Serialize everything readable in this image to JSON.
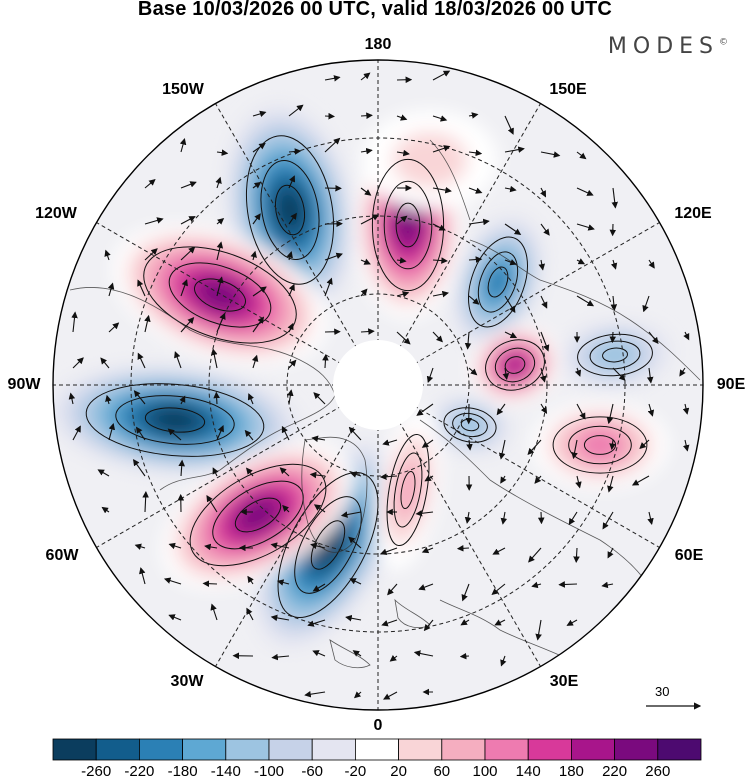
{
  "title": "Base 10/03/2026 00 UTC, valid 18/03/2026 00 UTC",
  "brand": "MODES",
  "brand_mark": "©",
  "longitude_labels": {
    "top": "180",
    "top_left": "150W",
    "top_right": "150E",
    "upper_left": "120W",
    "upper_right": "120E",
    "left": "90W",
    "right": "90E",
    "lower_left": "60W",
    "lower_right": "60E",
    "bottom_left": "30W",
    "bottom_right": "30E",
    "bottom": "0"
  },
  "reference_vector": {
    "label": "30"
  },
  "colorbar": {
    "colors": [
      "#0b3d5e",
      "#125d8c",
      "#2b80b5",
      "#5ea8d3",
      "#9dc4e1",
      "#c6d2e8",
      "#e4e5f1",
      "#ffffff",
      "#f9d5d7",
      "#f5aec0",
      "#ee7bb0",
      "#d8399a",
      "#a8158b",
      "#7a0a7e",
      "#4d0a70"
    ],
    "labels": [
      "-260",
      "-220",
      "-180",
      "-140",
      "-100",
      "-60",
      "-20",
      "20",
      "60",
      "100",
      "140",
      "180",
      "220",
      "260"
    ]
  },
  "anomaly_centers": [
    {
      "sign": "negative",
      "value": -260
    },
    {
      "sign": "negative",
      "value": -260
    },
    {
      "sign": "negative",
      "value": -260
    },
    {
      "sign": "negative",
      "value": -180
    },
    {
      "sign": "negative",
      "value": -100
    },
    {
      "sign": "negative",
      "value": -100
    },
    {
      "sign": "positive",
      "value": 260
    },
    {
      "sign": "positive",
      "value": 260
    },
    {
      "sign": "positive",
      "value": 260
    },
    {
      "sign": "positive",
      "value": 220
    },
    {
      "sign": "positive",
      "value": 140
    },
    {
      "sign": "positive",
      "value": 100
    },
    {
      "sign": "positive",
      "value": 60
    }
  ]
}
